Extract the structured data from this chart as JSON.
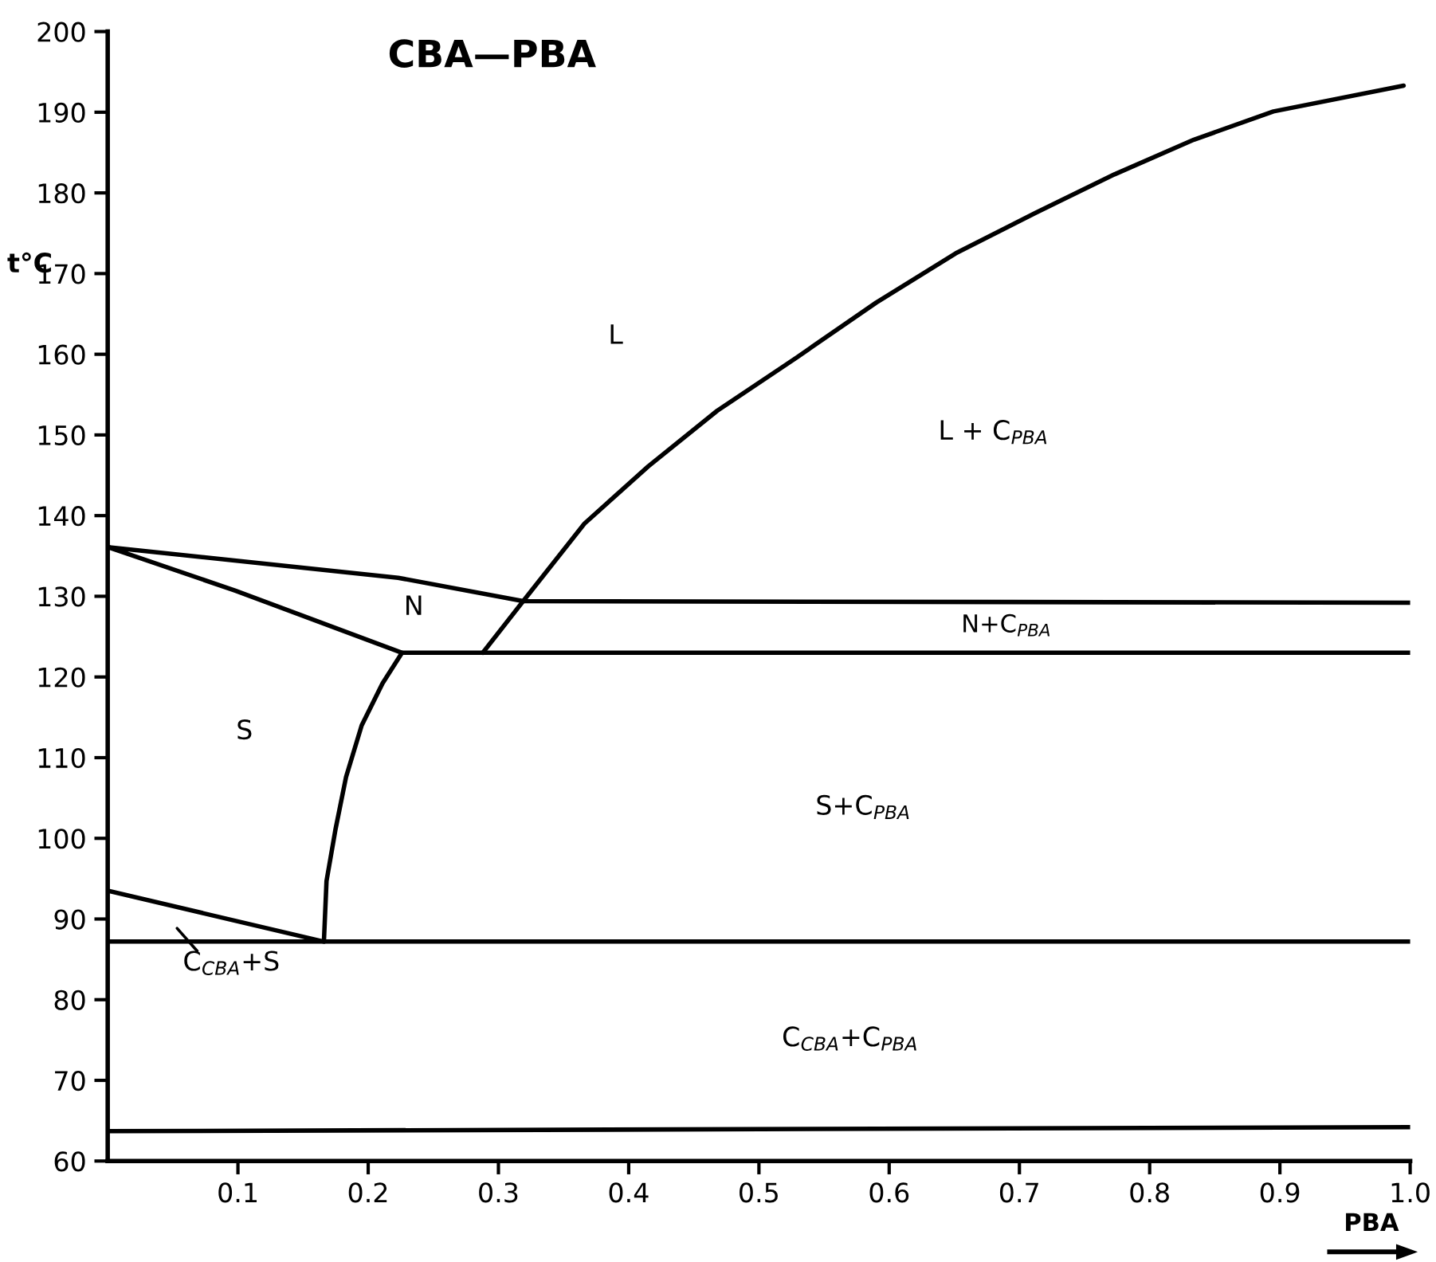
{
  "chart_data": {
    "type": "line",
    "title": "CBA—PBA",
    "xlabel": "PBA",
    "ylabel": "t°C",
    "xlim": [
      0,
      1.0
    ],
    "ylim": [
      60,
      200
    ],
    "xticks": [
      0.1,
      0.2,
      0.3,
      0.4,
      0.5,
      0.6,
      0.7,
      0.8,
      0.9,
      {
        "value": 1.0,
        "label": "1.0"
      }
    ],
    "yticks": [
      60,
      70,
      80,
      90,
      100,
      110,
      120,
      130,
      140,
      150,
      160,
      170,
      180,
      190,
      200
    ],
    "grid": false,
    "legend": false,
    "marker": "none",
    "line_style": "solid",
    "series": [
      {
        "color": "#000000",
        "x": [
          0.226,
          0.098,
          0,
          0.223,
          0.319,
          1.0
        ],
        "values": [
          123.0,
          130.7,
          136.1,
          132.3,
          129.4,
          129.2
        ]
      },
      {
        "color": "#000000",
        "x": [
          0.288,
          0.319,
          0.366,
          0.415,
          0.468,
          0.529,
          0.59,
          0.651,
          0.712,
          0.773,
          0.834,
          0.895,
          0.995
        ],
        "values": [
          123.0,
          129.4,
          139.0,
          146.1,
          153.0,
          159.6,
          166.4,
          172.5,
          177.5,
          182.3,
          186.6,
          190.1,
          193.3
        ]
      },
      {
        "color": "#000000",
        "x": [
          0,
          0.166,
          0.168,
          0.175,
          0.183,
          0.195,
          0.211,
          0.226,
          0.288,
          1.0
        ],
        "values": [
          93.5,
          87.2,
          94.7,
          101.2,
          107.6,
          114.0,
          119.2,
          123.0,
          123.0,
          123.0
        ]
      },
      {
        "color": "#000000",
        "x": [
          0,
          1.0
        ],
        "values": [
          87.2,
          87.2
        ]
      },
      {
        "color": "#000000",
        "x": [
          0,
          1.0
        ],
        "values": [
          63.7,
          64.2
        ]
      }
    ],
    "annotations": [
      "L",
      "N",
      "S",
      "L + C$_{PBA}$",
      "N+C$_{PBA}$",
      "S+C$_{PBA}$",
      "C$_{CBA}$+C$_{PBA}$",
      "C$_{CBA}$+S"
    ]
  }
}
